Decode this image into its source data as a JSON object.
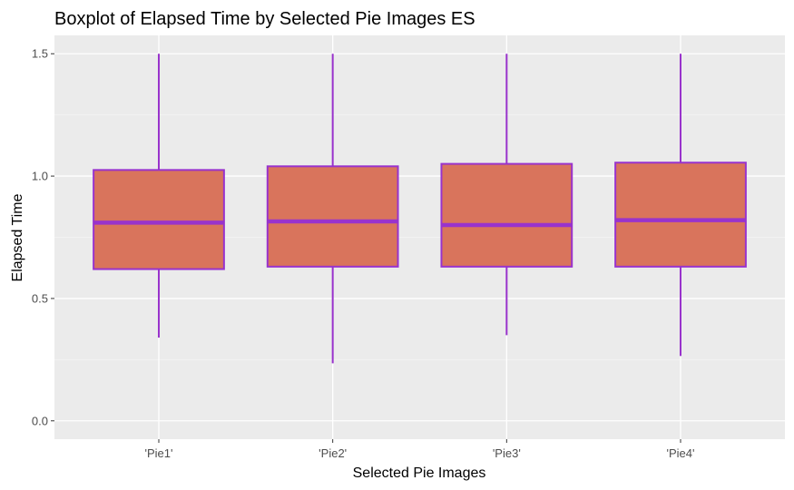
{
  "chart_data": {
    "type": "boxplot",
    "title": "Boxplot of Elapsed Time by Selected Pie Images ES",
    "xlabel": "Selected Pie Images",
    "ylabel": "Elapsed Time",
    "categories": [
      "'Pie1'",
      "'Pie2'",
      "'Pie3'",
      "'Pie4'"
    ],
    "boxes": [
      {
        "category": "'Pie1'",
        "min": 0.34,
        "q1": 0.62,
        "median": 0.81,
        "q3": 1.025,
        "max": 1.5
      },
      {
        "category": "'Pie2'",
        "min": 0.235,
        "q1": 0.63,
        "median": 0.815,
        "q3": 1.04,
        "max": 1.5
      },
      {
        "category": "'Pie3'",
        "min": 0.35,
        "q1": 0.63,
        "median": 0.8,
        "q3": 1.05,
        "max": 1.5
      },
      {
        "category": "'Pie4'",
        "min": 0.265,
        "q1": 0.63,
        "median": 0.82,
        "q3": 1.055,
        "max": 1.5
      }
    ],
    "y_ticks": [
      0.0,
      0.5,
      1.0,
      1.5
    ],
    "y_tick_labels": [
      "0.0",
      "0.5",
      "1.0",
      "1.5"
    ],
    "ylim": [
      -0.075,
      1.575
    ],
    "grid": true,
    "colors": {
      "panel_background": "#ebebeb",
      "grid_major": "#ffffff",
      "grid_minor": "#f5f5f5",
      "box_fill": "#d9745c",
      "box_outline": "#9933cc",
      "tick_text": "#4d4d4d",
      "tick_mark": "#333333"
    }
  }
}
